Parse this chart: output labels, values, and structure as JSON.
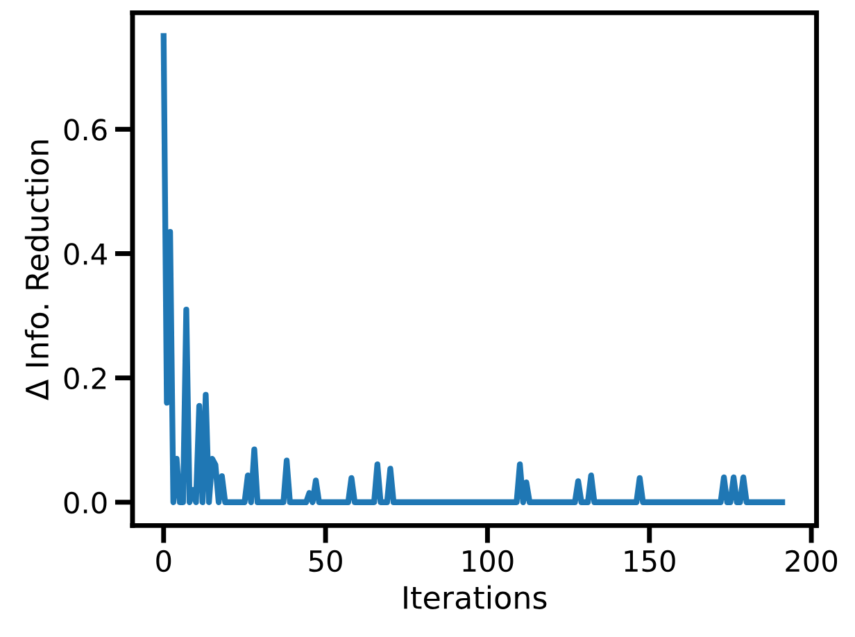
{
  "chart_data": {
    "type": "line",
    "xlabel": "Iterations",
    "ylabel": "Δ Info. Reduction",
    "series": [
      {
        "color": "#1f77b4",
        "x": [
          0,
          1,
          2,
          3,
          4,
          5,
          6,
          7,
          8,
          9,
          10,
          11,
          12,
          13,
          14,
          15,
          16,
          17,
          18,
          19,
          25,
          26,
          27,
          28,
          29,
          37,
          38,
          39,
          44,
          45,
          46,
          47,
          48,
          57,
          58,
          59,
          65,
          66,
          67,
          69,
          70,
          71,
          109,
          110,
          111,
          112,
          113,
          127,
          128,
          129,
          131,
          132,
          133,
          146,
          147,
          148,
          172,
          173,
          174,
          175,
          176,
          177,
          178,
          179,
          180,
          191
        ],
        "values": [
          0.75,
          0.16,
          0.435,
          0,
          0.07,
          0,
          0,
          0.31,
          0,
          0.02,
          0,
          0.155,
          0,
          0.173,
          0,
          0.07,
          0.06,
          0,
          0.042,
          0,
          0,
          0.043,
          0,
          0.085,
          0,
          0,
          0.067,
          0,
          0,
          0.015,
          0,
          0.035,
          0,
          0,
          0.039,
          0,
          0,
          0.061,
          0,
          0,
          0.054,
          0,
          0,
          0.061,
          0,
          0.032,
          0,
          0,
          0.034,
          0,
          0,
          0.043,
          0,
          0,
          0.039,
          0,
          0,
          0.04,
          0,
          0,
          0.04,
          0,
          0,
          0.04,
          0,
          0
        ]
      }
    ],
    "xlim": [
      -9.6,
      201.6
    ],
    "xticks": [
      0,
      50,
      100,
      150,
      200
    ],
    "ylim": [
      -0.0375,
      0.7875
    ],
    "yticks": [
      {
        "value": 0,
        "label": "0.0"
      },
      {
        "value": 0.2,
        "label": "0.2"
      },
      {
        "value": 0.4,
        "label": "0.4"
      },
      {
        "value": 0.6,
        "label": "0.6"
      }
    ],
    "grid": false,
    "legend": false
  }
}
